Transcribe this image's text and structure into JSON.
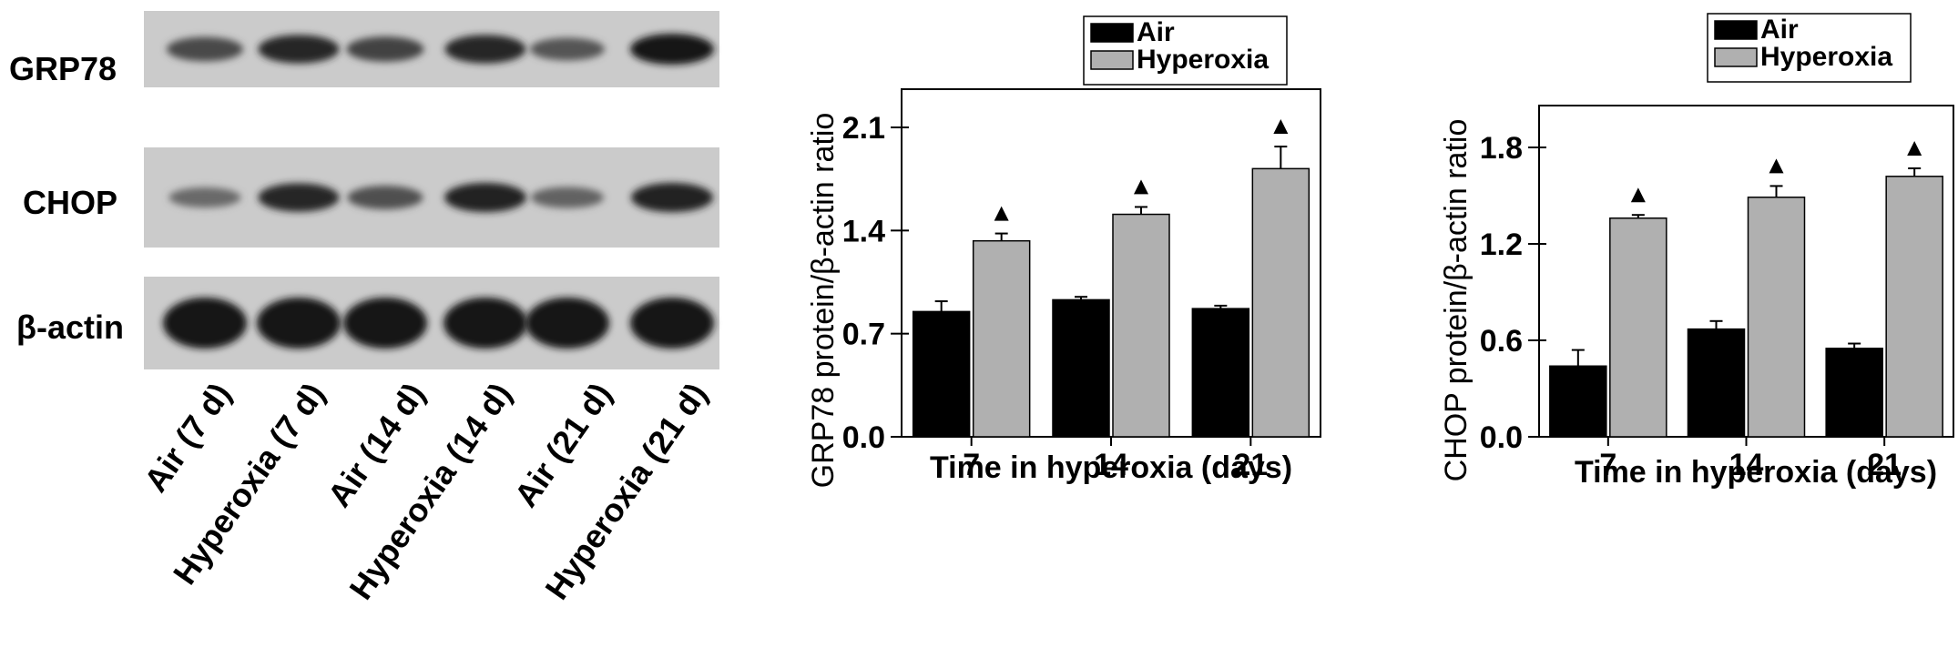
{
  "blot": {
    "rows": [
      {
        "label": "GRP78",
        "intensity": [
          0.6,
          0.85,
          0.65,
          0.85,
          0.5,
          1.0
        ]
      },
      {
        "label": "CHOP",
        "intensity": [
          0.35,
          0.85,
          0.55,
          0.9,
          0.4,
          0.9
        ]
      },
      {
        "label": "β-actin",
        "intensity": [
          1.0,
          1.0,
          1.0,
          1.0,
          1.0,
          1.0
        ]
      }
    ],
    "lanes": [
      "Air (7 d)",
      "Hyperoxia (7 d)",
      "Air (14 d)",
      "Hyperoxia (14 d)",
      "Air (21 d)",
      "Hyperoxia (21 d)"
    ]
  },
  "chart_data": [
    {
      "type": "bar",
      "categories": [
        "7",
        "14",
        "21"
      ],
      "series": [
        {
          "name": "Air",
          "color": "#000000",
          "values": [
            0.85,
            0.93,
            0.87
          ],
          "errors": [
            0.07,
            0.02,
            0.02
          ]
        },
        {
          "name": "Hyperoxia",
          "color": "#b0b0b0",
          "values": [
            1.33,
            1.51,
            1.82
          ],
          "errors": [
            0.05,
            0.05,
            0.15
          ]
        }
      ],
      "significance_marker": "▲",
      "xlabel": "Time in hyperoxia (days)",
      "ylabel": "GRP78 protein/β-actin ratio",
      "ylim": [
        0,
        2.1
      ],
      "yticks": [
        "0.0",
        "0.7",
        "1.4",
        "2.1"
      ],
      "legend": "top-right"
    },
    {
      "type": "bar",
      "categories": [
        "7",
        "14",
        "21"
      ],
      "series": [
        {
          "name": "Air",
          "color": "#000000",
          "values": [
            0.44,
            0.67,
            0.55
          ],
          "errors": [
            0.1,
            0.05,
            0.03
          ]
        },
        {
          "name": "Hyperoxia",
          "color": "#b0b0b0",
          "values": [
            1.36,
            1.49,
            1.62
          ],
          "errors": [
            0.02,
            0.07,
            0.05
          ]
        }
      ],
      "significance_marker": "▲",
      "xlabel": "Time in hyperoxia (days)",
      "ylabel": "CHOP protein/β-actin ratio",
      "ylim": [
        0,
        1.8
      ],
      "yticks": [
        "0.0",
        "0.6",
        "1.2",
        "1.8"
      ],
      "legend": "top-right"
    }
  ]
}
